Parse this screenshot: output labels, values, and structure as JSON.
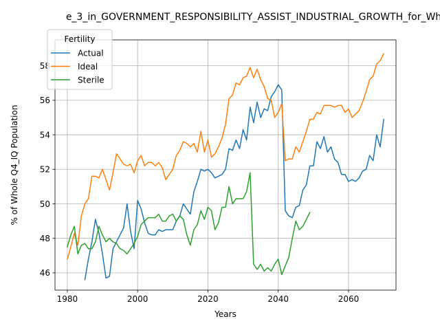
{
  "chart_data": {
    "type": "line",
    "title": "e_3_in_GOVERNMENT_RESPONSIBILITY_ASSIST_INDUSTRIAL_GROWTH_for_Wh",
    "xlabel": "Years",
    "ylabel": "% of Whole Q4_IQ Population",
    "xlim": [
      1976.5,
      2073.5
    ],
    "ylim": [
      45.0,
      59.5
    ],
    "xticks": [
      1980,
      2000,
      2020,
      2040,
      2060
    ],
    "yticks": [
      46,
      48,
      50,
      52,
      54,
      56,
      58
    ],
    "grid": true,
    "legend": {
      "title": "Fertility",
      "position": "top-left"
    },
    "series": [
      {
        "name": "Actual",
        "color": "#1f77b4",
        "x": [
          1985,
          1986,
          1987,
          1988,
          1989,
          1990,
          1991,
          1992,
          1993,
          1994,
          1995,
          1996,
          1997,
          1998,
          1999,
          2000,
          2001,
          2002,
          2003,
          2004,
          2005,
          2006,
          2007,
          2008,
          2009,
          2010,
          2011,
          2012,
          2013,
          2014,
          2015,
          2016,
          2017,
          2018,
          2019,
          2020,
          2021,
          2022,
          2023,
          2024,
          2025,
          2026,
          2027,
          2028,
          2029,
          2030,
          2031,
          2032,
          2033,
          2034,
          2035,
          2036,
          2037,
          2038,
          2039,
          2040,
          2041,
          2042,
          2043,
          2044,
          2045,
          2046,
          2047,
          2048,
          2049,
          2050,
          2051,
          2052,
          2053,
          2054,
          2055,
          2056,
          2057,
          2058,
          2059,
          2060,
          2061,
          2062,
          2063,
          2064,
          2065,
          2066,
          2067,
          2068,
          2069,
          2070
        ],
        "y": [
          45.6,
          46.8,
          47.8,
          49.1,
          48.3,
          47.1,
          45.7,
          45.8,
          47.4,
          47.8,
          48.2,
          48.6,
          50.0,
          48.4,
          47.4,
          50.2,
          49.7,
          48.9,
          48.3,
          48.2,
          48.2,
          48.5,
          48.4,
          48.5,
          48.5,
          48.5,
          49.0,
          49.3,
          50.0,
          49.7,
          49.4,
          50.7,
          51.3,
          52.0,
          51.9,
          52.0,
          51.8,
          51.5,
          51.6,
          51.7,
          52.0,
          53.2,
          53.1,
          53.7,
          53.2,
          54.3,
          53.7,
          55.6,
          54.7,
          55.9,
          55.0,
          55.5,
          55.4,
          56.2,
          56.5,
          56.9,
          56.6,
          49.6,
          49.3,
          49.2,
          49.8,
          49.9,
          50.8,
          51.1,
          52.2,
          52.2,
          53.6,
          53.2,
          53.9,
          53.0,
          53.3,
          52.6,
          52.4,
          51.7,
          51.7,
          51.3,
          51.4,
          51.3,
          51.5,
          51.9,
          52.0,
          52.8,
          52.5,
          54.0,
          53.3,
          54.9
        ]
      },
      {
        "name": "Ideal",
        "color": "#ff7f0e",
        "x": [
          1980,
          1981,
          1982,
          1983,
          1984,
          1985,
          1986,
          1987,
          1988,
          1989,
          1990,
          1991,
          1992,
          1993,
          1994,
          1995,
          1996,
          1997,
          1998,
          1999,
          2000,
          2001,
          2002,
          2003,
          2004,
          2005,
          2006,
          2007,
          2008,
          2009,
          2010,
          2011,
          2012,
          2013,
          2014,
          2015,
          2016,
          2017,
          2018,
          2019,
          2020,
          2021,
          2022,
          2023,
          2024,
          2025,
          2026,
          2027,
          2028,
          2029,
          2030,
          2031,
          2032,
          2033,
          2034,
          2035,
          2036,
          2037,
          2038,
          2039,
          2040,
          2041,
          2042,
          2043,
          2044,
          2045,
          2046,
          2047,
          2048,
          2049,
          2050,
          2051,
          2052,
          2053,
          2054,
          2055,
          2056,
          2057,
          2058,
          2059,
          2060,
          2061,
          2062,
          2063,
          2064,
          2065,
          2066,
          2067,
          2068,
          2069,
          2070
        ],
        "y": [
          46.8,
          47.5,
          48.3,
          47.6,
          49.3,
          50.0,
          50.3,
          51.6,
          51.6,
          51.5,
          52.0,
          51.4,
          50.8,
          51.8,
          52.9,
          52.6,
          52.3,
          52.2,
          52.3,
          51.8,
          52.5,
          52.8,
          52.2,
          52.4,
          52.4,
          52.2,
          52.4,
          52.1,
          51.4,
          51.7,
          52.0,
          52.8,
          53.1,
          53.6,
          53.5,
          53.3,
          53.5,
          53.0,
          54.2,
          53.0,
          53.7,
          52.7,
          52.9,
          53.3,
          53.8,
          54.6,
          56.1,
          56.3,
          57.0,
          56.9,
          57.3,
          57.4,
          57.9,
          57.3,
          57.8,
          57.2,
          56.8,
          56.1,
          56.0,
          55.0,
          55.3,
          55.8,
          52.5,
          52.6,
          52.6,
          53.3,
          53.0,
          53.6,
          54.2,
          54.9,
          54.9,
          55.3,
          55.2,
          55.7,
          55.7,
          55.7,
          55.6,
          55.7,
          55.7,
          55.3,
          55.5,
          55.0,
          55.2,
          55.4,
          55.9,
          56.5,
          57.2,
          57.4,
          58.1,
          58.3,
          58.7
        ]
      },
      {
        "name": "Sterile",
        "color": "#2ca02c",
        "x": [
          1980,
          1981,
          1982,
          1983,
          1984,
          1985,
          1986,
          1987,
          1988,
          1989,
          1990,
          1991,
          1992,
          1993,
          1994,
          1995,
          1996,
          1997,
          1998,
          1999,
          2000,
          2001,
          2002,
          2003,
          2004,
          2005,
          2006,
          2007,
          2008,
          2009,
          2010,
          2011,
          2012,
          2013,
          2014,
          2015,
          2016,
          2017,
          2018,
          2019,
          2020,
          2021,
          2022,
          2023,
          2024,
          2025,
          2026,
          2027,
          2028,
          2029,
          2030,
          2031,
          2032,
          2033,
          2034,
          2035,
          2036,
          2037,
          2038,
          2039,
          2040,
          2041,
          2042,
          2043,
          2044,
          2045,
          2046,
          2047,
          2048,
          2049
        ],
        "y": [
          47.5,
          48.2,
          48.7,
          47.1,
          47.6,
          47.7,
          47.4,
          47.4,
          47.8,
          48.7,
          48.2,
          47.8,
          48.0,
          47.8,
          47.7,
          47.4,
          47.3,
          47.1,
          47.4,
          47.7,
          48.1,
          48.8,
          49.0,
          49.2,
          49.2,
          49.2,
          49.4,
          49.0,
          49.0,
          49.3,
          49.4,
          49.0,
          49.3,
          49.1,
          48.2,
          47.6,
          48.5,
          48.8,
          49.6,
          49.1,
          49.8,
          49.6,
          48.5,
          48.9,
          49.8,
          49.8,
          51.0,
          50.0,
          50.3,
          50.3,
          50.3,
          50.7,
          51.8,
          46.5,
          46.2,
          46.5,
          46.1,
          46.3,
          46.1,
          46.5,
          46.8,
          45.9,
          46.4,
          46.9,
          48.0,
          49.0,
          48.5,
          48.7,
          49.1,
          49.5
        ]
      }
    ]
  }
}
